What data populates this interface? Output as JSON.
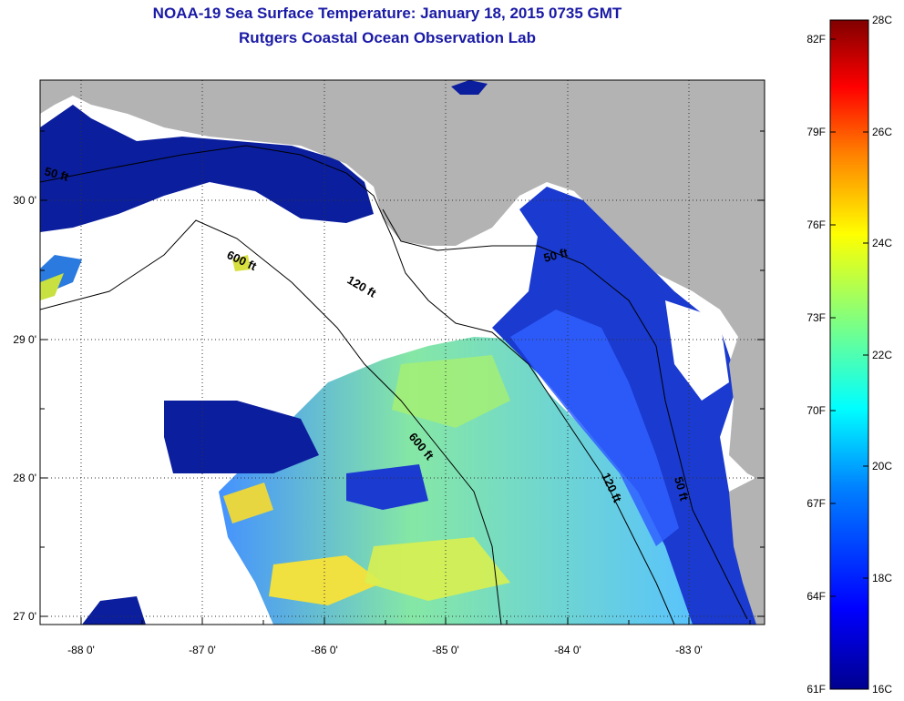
{
  "title": "NOAA-19 Sea Surface Temperature:  January 18, 2015 0735 GMT",
  "subtitle": "Rutgers Coastal Ocean Observation Lab",
  "lon_ticks": [
    "-88 0'",
    "-87 0'",
    "-86 0'",
    "-85 0'",
    "-84 0'",
    "-83 0'"
  ],
  "lat_ticks": [
    "30 0'",
    "29 0'",
    "28 0'",
    "27 0'"
  ],
  "depth_labels": {
    "d600_north": "600 ft",
    "d120_north": "120 ft",
    "d50_north": "50 ft",
    "d600_south": "600 ft",
    "d120_south": "120 ft",
    "d50_south": "50 ft",
    "d50_west": "50 ft"
  },
  "colorbar": {
    "fahrenheit": [
      "82F",
      "79F",
      "76F",
      "73F",
      "70F",
      "67F",
      "64F",
      "61F"
    ],
    "celsius": [
      "28C",
      "26C",
      "24C",
      "22C",
      "20C",
      "18C",
      "16C"
    ]
  },
  "colors": {
    "title": "#1a1aa6",
    "land": "#b3b3b3",
    "cloud": "#ffffff",
    "cold": "#0b1e9e"
  }
}
